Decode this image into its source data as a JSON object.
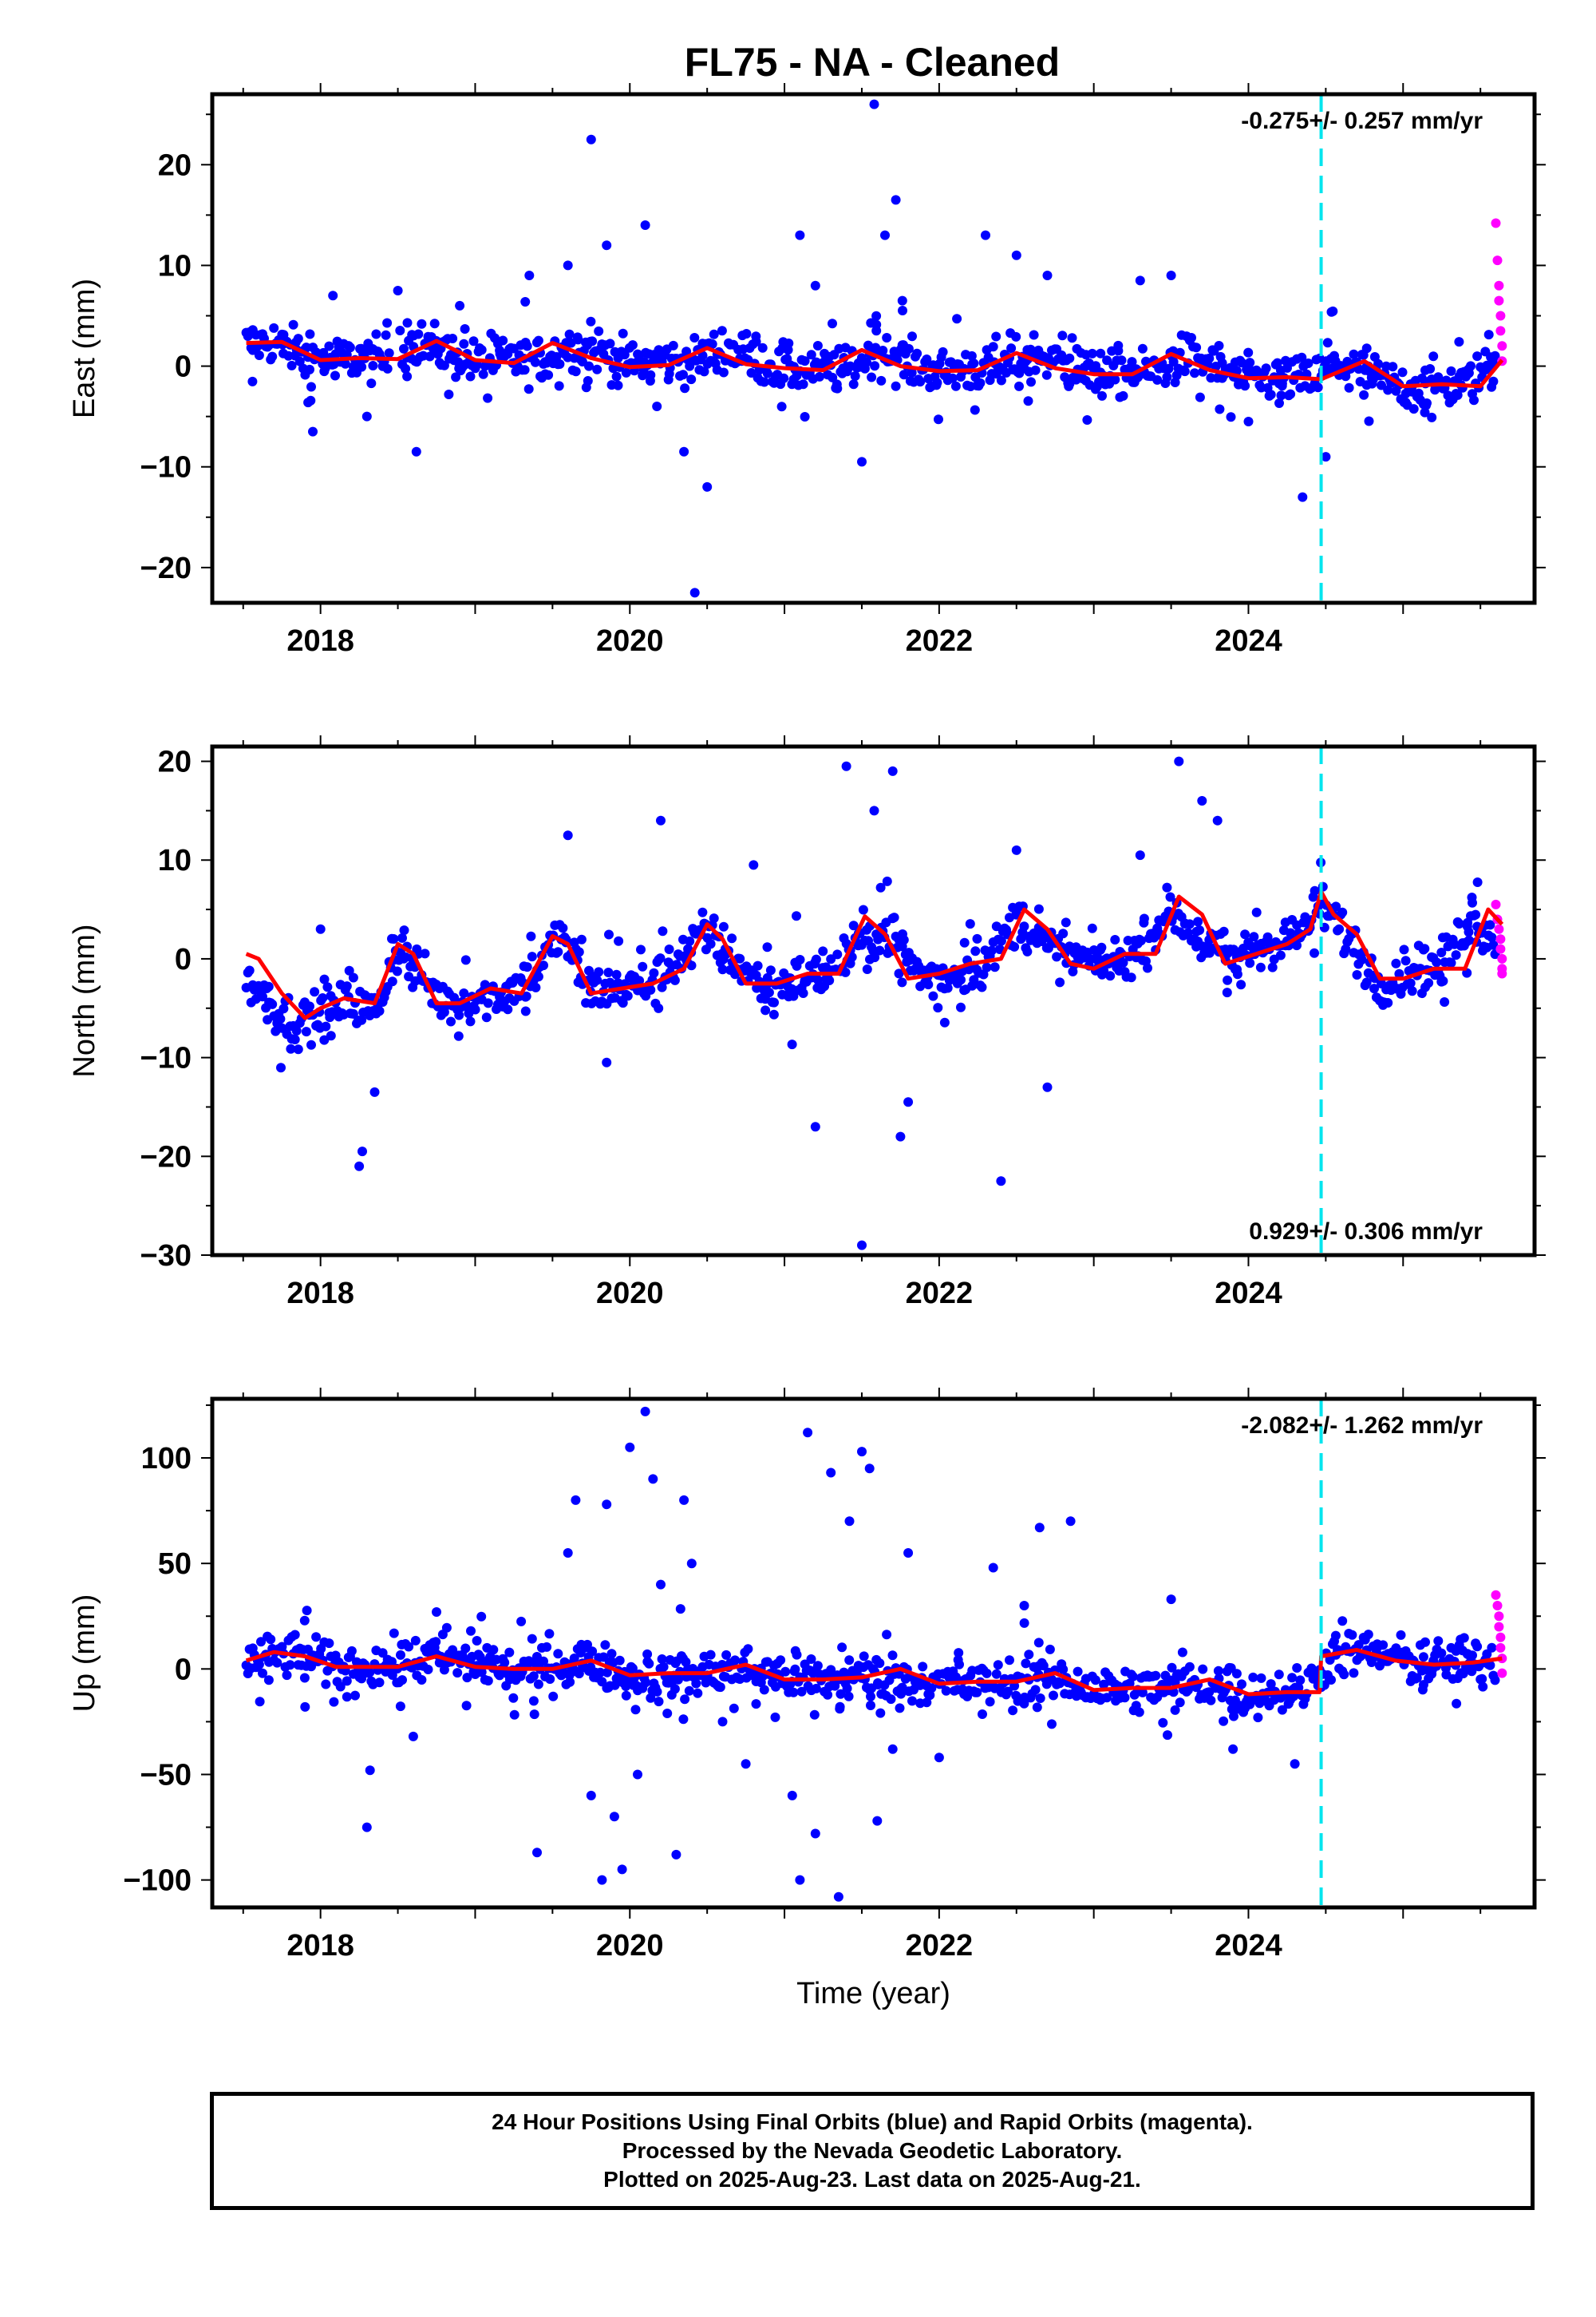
{
  "title": "FL75  - NA - Cleaned",
  "footer": {
    "line1": "24 Hour Positions Using Final Orbits (blue) and Rapid Orbits (magenta).",
    "line2": "Processed by the Nevada Geodetic Laboratory.",
    "line3": "Plotted on 2025-Aug-23. Last data on 2025-Aug-21."
  },
  "colors": {
    "final_orbits": "#0000ff",
    "rapid_orbits": "#ff00ff",
    "model_fit": "#ff0000",
    "break_line": "#00e5ee"
  },
  "chart_data": [
    {
      "type": "scatter",
      "title": "",
      "xlabel": "",
      "ylabel": "East (mm)",
      "xlim": [
        2017.3,
        2025.85
      ],
      "ylim": [
        -23.5,
        27
      ],
      "xticks": [
        2018,
        2020,
        2022,
        2024
      ],
      "yticks": [
        -20,
        -10,
        0,
        10,
        20
      ],
      "grid": false,
      "rate_text": "-0.275+/- 0.257 mm/yr",
      "rate_position": "top-right",
      "break_epoch": 2024.47,
      "final_range": [
        2017.52,
        2025.6
      ],
      "rapid_range": [
        2025.6,
        2025.64
      ],
      "series": [
        {
          "role": "final",
          "x": [
            2017.55,
            2017.7,
            2017.9,
            2018.05,
            2018.2,
            2018.4,
            2018.6,
            2018.8,
            2019.0,
            2019.2,
            2019.4,
            2019.6,
            2019.8,
            2020.0,
            2020.2,
            2020.4,
            2020.6,
            2020.8,
            2021.0,
            2021.2,
            2021.4,
            2021.6,
            2021.8,
            2022.0,
            2022.2,
            2022.4,
            2022.6,
            2022.8,
            2023.0,
            2023.2,
            2023.4,
            2023.6,
            2023.8,
            2024.0,
            2024.2,
            2024.4,
            2024.6,
            2024.8,
            2025.0,
            2025.2,
            2025.4,
            2025.6
          ],
          "y": [
            2.2,
            2.5,
            1.0,
            0.5,
            0.8,
            0.6,
            2.5,
            1.5,
            0.3,
            0.6,
            0.5,
            2.0,
            1.6,
            0.2,
            0.6,
            0.3,
            1.8,
            0.8,
            -0.5,
            -0.2,
            -0.5,
            1.5,
            0.2,
            -0.6,
            -0.3,
            -0.5,
            1.3,
            0.2,
            -1.0,
            -0.8,
            -0.6,
            1.0,
            0.0,
            -1.4,
            -1.2,
            -1.4,
            0.2,
            -1.0,
            -2.2,
            -1.8,
            -2.0,
            0.5
          ]
        },
        {
          "role": "final-outliers",
          "x": [
            2017.95,
            2018.08,
            2018.3,
            2018.5,
            2018.62,
            2018.9,
            2019.35,
            2019.6,
            2019.75,
            2019.85,
            2020.1,
            2020.35,
            2020.42,
            2020.5,
            2021.1,
            2021.2,
            2021.5,
            2021.58,
            2021.65,
            2021.72,
            2022.3,
            2022.5,
            2022.7,
            2023.3,
            2023.5,
            2024.0,
            2024.35,
            2024.5
          ],
          "y": [
            -6.5,
            7.0,
            -5.0,
            7.5,
            -8.5,
            6.0,
            9.0,
            10.0,
            22.5,
            12.0,
            14.0,
            -8.5,
            -22.5,
            -12.0,
            13.0,
            8.0,
            -9.5,
            26.0,
            13.0,
            16.5,
            13.0,
            11.0,
            9.0,
            8.5,
            9.0,
            -5.5,
            -13.0,
            -9.0
          ]
        },
        {
          "role": "rapid",
          "x": [
            2025.6,
            2025.61,
            2025.62,
            2025.62,
            2025.63,
            2025.63,
            2025.64,
            2025.64
          ],
          "y": [
            14.2,
            10.5,
            8.0,
            6.5,
            5.0,
            3.5,
            2.0,
            0.5
          ]
        },
        {
          "role": "model",
          "x": [
            2017.52,
            2017.75,
            2018.0,
            2018.25,
            2018.5,
            2018.75,
            2019.0,
            2019.25,
            2019.5,
            2019.75,
            2020.0,
            2020.25,
            2020.5,
            2020.75,
            2021.0,
            2021.25,
            2021.5,
            2021.75,
            2022.0,
            2022.25,
            2022.5,
            2022.75,
            2023.0,
            2023.25,
            2023.5,
            2023.75,
            2024.0,
            2024.25,
            2024.47,
            2024.75,
            2025.0,
            2025.25,
            2025.5,
            2025.64
          ],
          "y": [
            2.3,
            2.4,
            0.6,
            0.8,
            0.7,
            2.5,
            0.6,
            0.3,
            2.3,
            0.8,
            -0.1,
            0.1,
            1.8,
            0.2,
            -0.2,
            -0.4,
            1.6,
            0.0,
            -0.5,
            -0.4,
            1.3,
            -0.2,
            -0.8,
            -0.8,
            1.2,
            -0.4,
            -1.2,
            -1.1,
            -1.3,
            0.5,
            -2.0,
            -1.8,
            -2.0,
            0.6
          ]
        }
      ]
    },
    {
      "type": "scatter",
      "title": "",
      "xlabel": "",
      "ylabel": "North (mm)",
      "xlim": [
        2017.3,
        2025.85
      ],
      "ylim": [
        -30,
        21.5
      ],
      "xticks": [
        2018,
        2020,
        2022,
        2024
      ],
      "yticks": [
        -30,
        -20,
        -10,
        0,
        10,
        20
      ],
      "grid": false,
      "rate_text": "0.929+/- 0.306 mm/yr",
      "rate_position": "bottom-right",
      "break_epoch": 2024.47,
      "final_range": [
        2017.52,
        2025.6
      ],
      "rapid_range": [
        2025.6,
        2025.64
      ],
      "series": [
        {
          "role": "final",
          "x": [
            2017.55,
            2017.7,
            2017.85,
            2018.0,
            2018.2,
            2018.35,
            2018.5,
            2018.65,
            2018.8,
            2019.0,
            2019.2,
            2019.4,
            2019.55,
            2019.75,
            2019.95,
            2020.15,
            2020.35,
            2020.5,
            2020.7,
            2020.9,
            2021.1,
            2021.3,
            2021.5,
            2021.7,
            2021.9,
            2022.1,
            2022.3,
            2022.5,
            2022.7,
            2022.9,
            2023.1,
            2023.3,
            2023.5,
            2023.7,
            2023.9,
            2024.1,
            2024.3,
            2024.47,
            2024.65,
            2024.85,
            2025.05,
            2025.25,
            2025.45,
            2025.6
          ],
          "y": [
            -2.5,
            -5.0,
            -6.5,
            -5.5,
            -4.5,
            -5.5,
            1.0,
            -1.5,
            -4.5,
            -4.0,
            -3.5,
            -1.0,
            2.5,
            -3.0,
            -3.0,
            -2.5,
            0.5,
            3.0,
            -0.5,
            -3.0,
            -2.0,
            -1.5,
            2.0,
            2.5,
            -2.0,
            -1.5,
            -0.5,
            4.0,
            1.0,
            0.0,
            -0.5,
            1.0,
            5.0,
            1.5,
            0.0,
            1.5,
            2.0,
            5.5,
            2.0,
            -2.5,
            -1.0,
            -1.0,
            4.5,
            2.0
          ]
        },
        {
          "role": "final-outliers",
          "x": [
            2018.0,
            2018.25,
            2018.27,
            2018.35,
            2019.6,
            2019.85,
            2020.2,
            2020.8,
            2021.2,
            2021.4,
            2021.5,
            2021.58,
            2021.7,
            2021.75,
            2021.8,
            2022.4,
            2022.5,
            2022.7,
            2023.3,
            2023.55,
            2023.7,
            2023.8
          ],
          "y": [
            3.0,
            -21.0,
            -19.5,
            -13.5,
            12.5,
            -10.5,
            14.0,
            9.5,
            -17.0,
            19.5,
            -29.0,
            15.0,
            19.0,
            -18.0,
            -14.5,
            -22.5,
            11.0,
            -13.0,
            10.5,
            20.0,
            16.0,
            14.0
          ]
        },
        {
          "role": "rapid",
          "x": [
            2025.6,
            2025.61,
            2025.62,
            2025.63,
            2025.63,
            2025.64,
            2025.64,
            2025.64
          ],
          "y": [
            5.5,
            4.0,
            3.0,
            2.0,
            1.0,
            0.0,
            -1.0,
            -1.5
          ]
        },
        {
          "role": "model",
          "x": [
            2017.52,
            2017.6,
            2017.75,
            2017.9,
            2018.0,
            2018.15,
            2018.35,
            2018.5,
            2018.6,
            2018.75,
            2018.9,
            2019.1,
            2019.3,
            2019.5,
            2019.6,
            2019.75,
            2019.95,
            2020.15,
            2020.35,
            2020.5,
            2020.6,
            2020.75,
            2020.95,
            2021.15,
            2021.35,
            2021.52,
            2021.65,
            2021.8,
            2022.0,
            2022.2,
            2022.4,
            2022.55,
            2022.7,
            2022.85,
            2023.0,
            2023.2,
            2023.4,
            2023.55,
            2023.7,
            2023.85,
            2024.05,
            2024.25,
            2024.4,
            2024.47,
            2024.55,
            2024.7,
            2024.85,
            2025.0,
            2025.2,
            2025.4,
            2025.55,
            2025.64
          ],
          "y": [
            0.5,
            0.0,
            -3.5,
            -6.0,
            -5.0,
            -4.0,
            -4.5,
            1.5,
            0.5,
            -4.5,
            -4.5,
            -3.0,
            -3.5,
            2.3,
            1.5,
            -3.5,
            -3.0,
            -2.5,
            -1.0,
            3.5,
            2.0,
            -2.5,
            -2.5,
            -1.5,
            -1.5,
            4.3,
            2.5,
            -2.0,
            -1.5,
            -0.5,
            0.0,
            5.0,
            3.0,
            -0.5,
            -1.0,
            0.5,
            0.5,
            6.3,
            4.5,
            -0.5,
            0.5,
            1.5,
            3.0,
            6.8,
            4.5,
            2.5,
            -2.0,
            -2.0,
            -1.0,
            -1.0,
            5.0,
            3.5
          ]
        }
      ]
    },
    {
      "type": "scatter",
      "title": "",
      "xlabel": "Time (year)",
      "ylabel": "Up (mm)",
      "xlim": [
        2017.3,
        2025.85
      ],
      "ylim": [
        -113,
        128
      ],
      "xticks": [
        2018,
        2020,
        2022,
        2024
      ],
      "yticks": [
        -100,
        -50,
        0,
        50,
        100
      ],
      "grid": false,
      "rate_text": "-2.082+/- 1.262 mm/yr",
      "rate_position": "top-right",
      "break_epoch": 2024.47,
      "final_range": [
        2017.52,
        2025.6
      ],
      "rapid_range": [
        2025.6,
        2025.64
      ],
      "series": [
        {
          "role": "final",
          "x": [
            2017.55,
            2017.75,
            2017.95,
            2018.15,
            2018.35,
            2018.55,
            2018.75,
            2018.95,
            2019.15,
            2019.35,
            2019.55,
            2019.75,
            2019.95,
            2020.15,
            2020.35,
            2020.55,
            2020.75,
            2020.95,
            2021.15,
            2021.35,
            2021.55,
            2021.75,
            2021.95,
            2022.15,
            2022.35,
            2022.55,
            2022.75,
            2022.95,
            2023.15,
            2023.35,
            2023.55,
            2023.75,
            2023.95,
            2024.15,
            2024.35,
            2024.55,
            2024.75,
            2024.95,
            2025.15,
            2025.35,
            2025.55
          ],
          "y": [
            3,
            7,
            4,
            0,
            2,
            2,
            5,
            3,
            0,
            -1,
            2,
            3,
            -2,
            -5,
            -3,
            -2,
            0,
            -3,
            -6,
            -5,
            -4,
            -4,
            -7,
            -8,
            -7,
            -6,
            -5,
            -9,
            -10,
            -9,
            -8,
            -7,
            -12,
            -11,
            -10,
            6,
            8,
            5,
            2,
            3,
            4
          ]
        },
        {
          "role": "final-outliers",
          "x": [
            2017.9,
            2018.3,
            2018.32,
            2018.6,
            2018.75,
            2019.4,
            2019.6,
            2019.65,
            2019.75,
            2019.82,
            2019.85,
            2019.9,
            2019.95,
            2020.0,
            2020.05,
            2020.1,
            2020.15,
            2020.2,
            2020.3,
            2020.35,
            2020.4,
            2020.6,
            2020.75,
            2021.05,
            2021.1,
            2021.15,
            2021.2,
            2021.3,
            2021.35,
            2021.42,
            2021.5,
            2021.55,
            2021.6,
            2021.7,
            2021.8,
            2022.0,
            2022.35,
            2022.55,
            2022.65,
            2022.85,
            2023.5,
            2023.9,
            2024.3
          ],
          "y": [
            -18,
            -75,
            -48,
            -32,
            27,
            -87,
            55,
            80,
            -60,
            -100,
            78,
            -70,
            -95,
            105,
            -50,
            122,
            90,
            40,
            -88,
            80,
            50,
            -25,
            -45,
            -60,
            -100,
            112,
            -78,
            93,
            -108,
            70,
            103,
            95,
            -72,
            -38,
            55,
            -42,
            48,
            30,
            67,
            70,
            33,
            -38,
            -45
          ]
        },
        {
          "role": "rapid",
          "x": [
            2025.6,
            2025.61,
            2025.62,
            2025.62,
            2025.63,
            2025.63,
            2025.64,
            2025.64
          ],
          "y": [
            35,
            30,
            25,
            20,
            15,
            10,
            5,
            -2
          ]
        },
        {
          "role": "model",
          "x": [
            2017.52,
            2017.7,
            2017.9,
            2018.1,
            2018.3,
            2018.5,
            2018.75,
            2019.0,
            2019.25,
            2019.5,
            2019.75,
            2020.0,
            2020.25,
            2020.5,
            2020.75,
            2021.0,
            2021.25,
            2021.5,
            2021.75,
            2022.0,
            2022.25,
            2022.5,
            2022.75,
            2023.0,
            2023.25,
            2023.5,
            2023.75,
            2024.0,
            2024.25,
            2024.46,
            2024.47,
            2024.7,
            2024.95,
            2025.2,
            2025.45,
            2025.64
          ],
          "y": [
            4,
            8,
            6,
            1,
            1,
            1,
            6,
            1,
            0,
            0,
            4,
            -3,
            -2,
            -2,
            2,
            -5,
            -5,
            -4,
            0,
            -7,
            -6,
            -6,
            -2,
            -10,
            -9,
            -9,
            -5,
            -12,
            -11,
            -11,
            6,
            9,
            4,
            2,
            3,
            5
          ]
        }
      ]
    }
  ]
}
